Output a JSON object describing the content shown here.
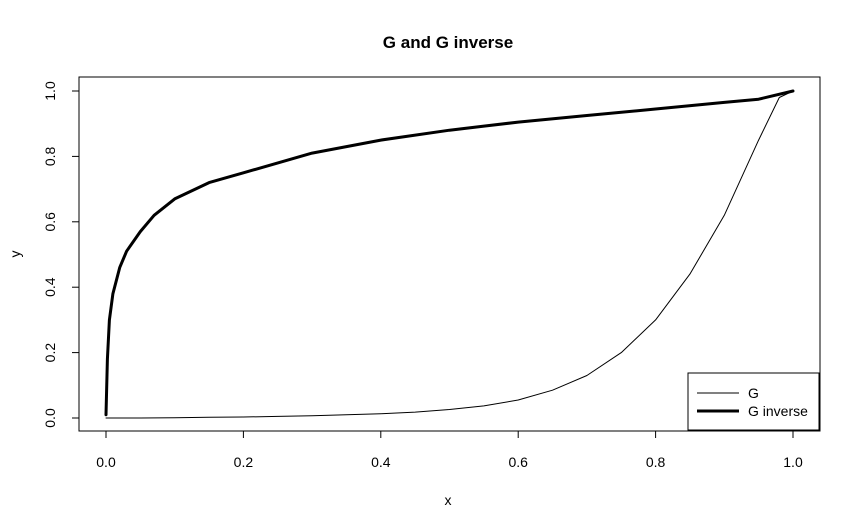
{
  "chart_data": {
    "type": "line",
    "title": "G and G inverse",
    "xlabel": "x",
    "ylabel": "y",
    "xlim": [
      0,
      1
    ],
    "ylim": [
      0,
      1
    ],
    "x_ticks": [
      "0.0",
      "0.2",
      "0.4",
      "0.6",
      "0.8",
      "1.0"
    ],
    "y_ticks": [
      "0.0",
      "0.2",
      "0.4",
      "0.6",
      "0.8",
      "1.0"
    ],
    "grid": false,
    "legend_position": "bottom-right",
    "series": [
      {
        "name": "G",
        "line_width": "thin",
        "color": "#000000",
        "x": [
          0,
          0.05,
          0.1,
          0.15,
          0.2,
          0.25,
          0.3,
          0.35,
          0.4,
          0.45,
          0.5,
          0.55,
          0.6,
          0.65,
          0.7,
          0.75,
          0.8,
          0.85,
          0.9,
          0.95,
          0.98,
          1.0
        ],
        "y": [
          0.0,
          0.0,
          0.001,
          0.002,
          0.003,
          0.005,
          0.007,
          0.01,
          0.013,
          0.018,
          0.026,
          0.037,
          0.055,
          0.085,
          0.13,
          0.2,
          0.3,
          0.44,
          0.62,
          0.85,
          0.98,
          1.0
        ]
      },
      {
        "name": "G inverse",
        "line_width": "thick",
        "color": "#000000",
        "x": [
          0.0,
          0.002,
          0.005,
          0.01,
          0.02,
          0.03,
          0.05,
          0.07,
          0.1,
          0.15,
          0.2,
          0.3,
          0.4,
          0.5,
          0.6,
          0.7,
          0.8,
          0.9,
          0.95,
          1.0
        ],
        "y": [
          0.01,
          0.18,
          0.3,
          0.38,
          0.46,
          0.51,
          0.57,
          0.62,
          0.67,
          0.72,
          0.75,
          0.81,
          0.85,
          0.88,
          0.905,
          0.925,
          0.945,
          0.965,
          0.975,
          1.0
        ]
      }
    ]
  }
}
